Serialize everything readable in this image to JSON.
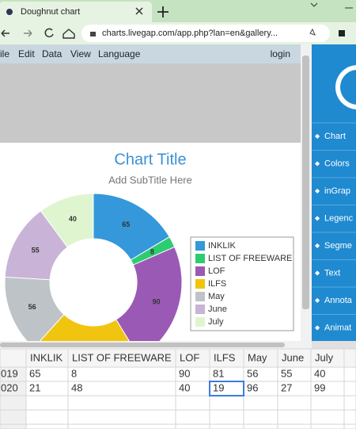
{
  "browser": {
    "tab_title": "Doughnut chart",
    "url": "charts.livegap.com/app.php?lan=en&gallery..."
  },
  "menu": {
    "items": [
      "ile",
      "Edit",
      "Data",
      "View",
      "Language"
    ],
    "login": "login"
  },
  "side_panel": {
    "items": [
      "Chart",
      "Colors",
      "inGrap",
      "Legenc",
      "Segme",
      "Text",
      "Annota",
      "Animat"
    ]
  },
  "chart_data": {
    "type": "doughnut",
    "title": "Chart Title",
    "subtitle": "Add SubTitle Here",
    "categories": [
      "INKLIK",
      "LIST OF FREEWARE",
      "LOF",
      "ILFS",
      "May",
      "June",
      "July"
    ],
    "values": [
      65,
      8,
      90,
      81,
      56,
      55,
      40
    ],
    "colors": [
      "#3498db",
      "#2ecc71",
      "#9b59b6",
      "#f1c40f",
      "#bdc3c7",
      "#c9b3d6",
      "#dff5d0"
    ],
    "legend": "right"
  },
  "table": {
    "row_labels": [
      "019",
      "020"
    ],
    "second_row": [
      21,
      48,
      40,
      19,
      96,
      27,
      99
    ]
  }
}
